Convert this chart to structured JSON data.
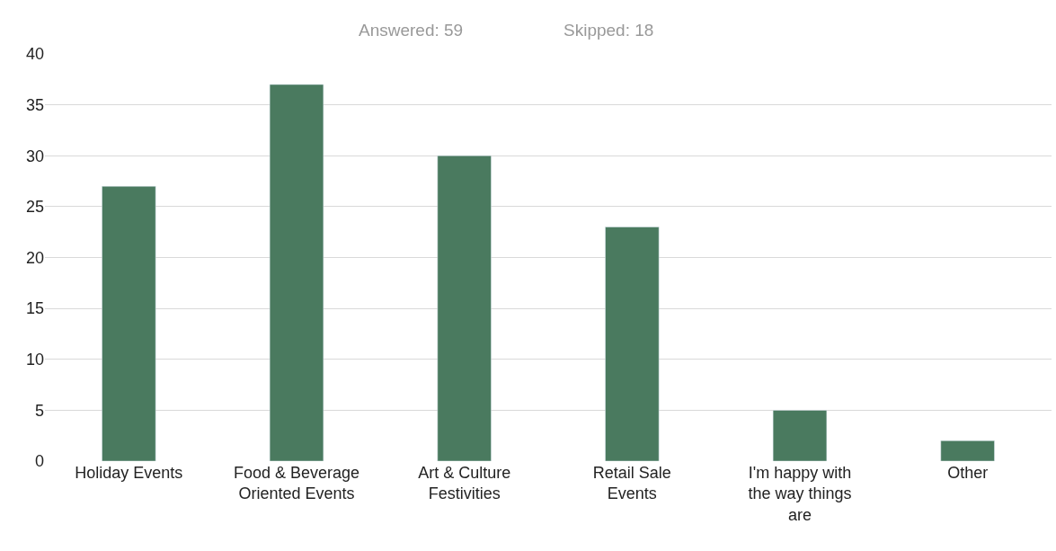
{
  "chart_data": {
    "type": "bar",
    "categories": [
      "Holiday Events",
      "Food & Beverage Oriented Events",
      "Art & Culture Festivities",
      "Retail Sale Events",
      "I'm happy with the way things are",
      "Other"
    ],
    "values": [
      27,
      37,
      30,
      23,
      5,
      2
    ],
    "color": "#4a7a5f",
    "ylim": [
      0,
      40
    ],
    "yticks": [
      0,
      5,
      10,
      15,
      20,
      25,
      30,
      35,
      40
    ],
    "grid": "y",
    "legend": false,
    "annotations": [
      "Answered: 59",
      "Skipped: 18"
    ]
  }
}
